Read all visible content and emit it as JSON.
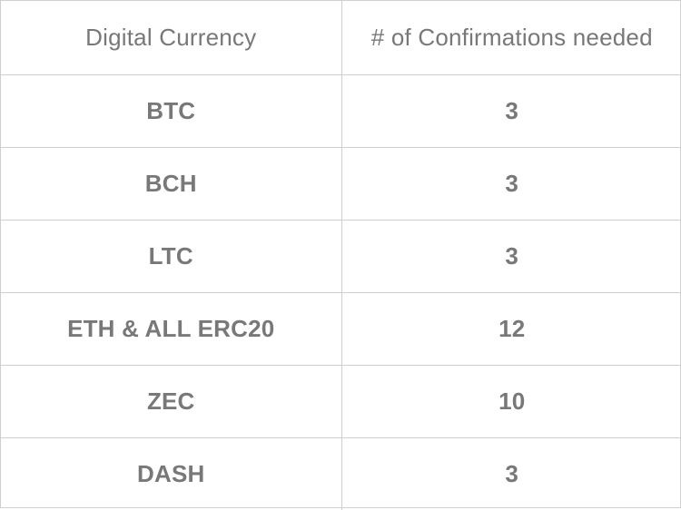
{
  "table": {
    "headers": {
      "currency": "Digital Currency",
      "confirmations": "# of Confirmations needed"
    },
    "rows": [
      {
        "currency": "BTC",
        "confirmations": "3"
      },
      {
        "currency": "BCH",
        "confirmations": "3"
      },
      {
        "currency": "LTC",
        "confirmations": "3"
      },
      {
        "currency": "ETH & ALL ERC20",
        "confirmations": "12"
      },
      {
        "currency": "ZEC",
        "confirmations": "10"
      },
      {
        "currency": "DASH",
        "confirmations": "3"
      }
    ]
  },
  "colors": {
    "text": "#787878",
    "border": "#cfcfcf",
    "background": "#ffffff"
  }
}
